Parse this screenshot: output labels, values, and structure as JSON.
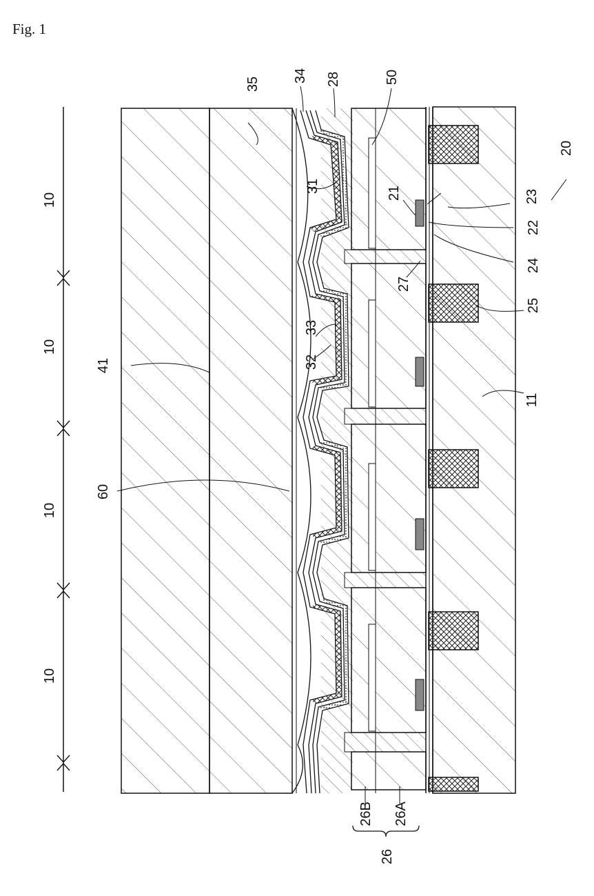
{
  "figure": {
    "label": "Fig. 1"
  },
  "labels": {
    "pixel_10_a": "10",
    "pixel_10_b": "10",
    "pixel_10_c": "10",
    "pixel_10_d": "10",
    "l41": "41",
    "l35": "35",
    "l34": "34",
    "l28": "28",
    "l50": "50",
    "l20": "20",
    "l31": "31",
    "l21": "21",
    "l23": "23",
    "l22": "22",
    "l24": "24",
    "l27": "27",
    "l25": "25",
    "l33": "33",
    "l32": "32",
    "l11": "11",
    "l60": "60",
    "l26B": "26B",
    "l26A": "26A",
    "l26": "26"
  }
}
